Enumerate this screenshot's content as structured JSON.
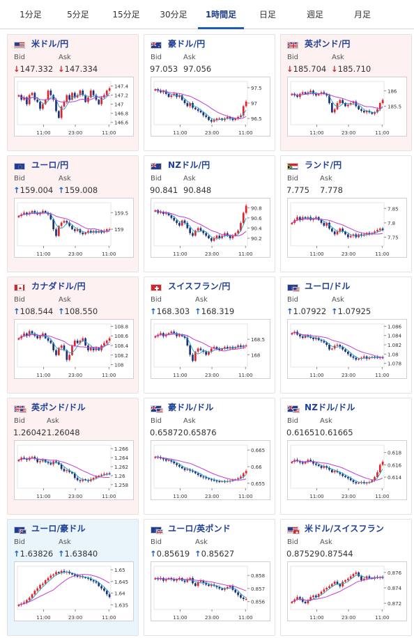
{
  "tabs": [
    {
      "label": "1分足",
      "active": false
    },
    {
      "label": "5分足",
      "active": false
    },
    {
      "label": "15分足",
      "active": false
    },
    {
      "label": "30分足",
      "active": false
    },
    {
      "label": "1時間足",
      "active": true
    },
    {
      "label": "日足",
      "active": false
    },
    {
      "label": "週足",
      "active": false
    },
    {
      "label": "月足",
      "active": false
    }
  ],
  "labels": {
    "bid": "Bid",
    "ask": "Ask"
  },
  "colors": {
    "up_arrow": "#1a5ec9",
    "down_arrow": "#d8232a",
    "candle_up": "#e0242a",
    "candle_down": "#1b2f7c",
    "ma_short": "#19a3c9",
    "ma_long": "#c03cd4",
    "card_pink": "#fdf1f1",
    "card_blue": "#eaf4fb"
  },
  "cards": [
    {
      "title": "米ドル/円",
      "flag": "us",
      "bg": "pink",
      "bid": "147.332",
      "ask": "147.334",
      "bid_arrow": "↓",
      "ask_arrow": "↓",
      "chart_data": {
        "type": "candlestick",
        "xticks": [
          "11:00",
          "23:00",
          "11:00"
        ],
        "yticks": [
          "147.4",
          "147.2",
          "147",
          "146.8",
          "146.6"
        ],
        "ylim": [
          146.55,
          147.5
        ],
        "close": [
          147.2,
          147.1,
          147.15,
          147.0,
          147.2,
          147.25,
          147.1,
          147.05,
          146.9,
          147.0,
          147.1,
          147.3,
          147.2,
          147.1,
          146.85,
          146.7,
          146.95,
          147.05,
          147.2,
          147.1,
          147.25,
          147.15,
          147.2,
          147.3,
          147.2,
          147.05,
          147.15,
          147.3,
          147.2,
          147.1,
          147.0,
          147.15,
          147.2,
          147.3,
          147.35
        ]
      }
    },
    {
      "title": "豪ドル/円",
      "flag": "au",
      "bg": "white",
      "bid": "97.053",
      "ask": "97.056",
      "bid_arrow": "",
      "ask_arrow": "",
      "chart_data": {
        "type": "candlestick",
        "xticks": [
          "11:00",
          "23:00",
          "11:00"
        ],
        "yticks": [
          "97.5",
          "97",
          "96.5"
        ],
        "ylim": [
          96.3,
          97.7
        ],
        "close": [
          97.45,
          97.4,
          97.35,
          97.4,
          97.3,
          97.2,
          97.25,
          97.3,
          97.2,
          97.25,
          97.1,
          97.0,
          96.9,
          97.0,
          96.85,
          96.8,
          96.75,
          96.7,
          96.6,
          96.55,
          96.45,
          96.4,
          96.45,
          96.5,
          96.5,
          96.45,
          96.5,
          96.55,
          96.5,
          96.45,
          96.5,
          96.55,
          96.6,
          96.9,
          97.05
        ]
      }
    },
    {
      "title": "英ポンド/円",
      "flag": "gb",
      "bg": "pink",
      "bid": "185.704",
      "ask": "185.710",
      "bid_arrow": "↓",
      "ask_arrow": "↓",
      "chart_data": {
        "type": "candlestick",
        "xticks": [
          "11:00",
          "23:00",
          "11:00"
        ],
        "yticks": [
          "186",
          "185.5"
        ],
        "ylim": [
          184.9,
          186.3
        ],
        "close": [
          185.9,
          185.85,
          185.8,
          185.9,
          185.95,
          185.9,
          185.95,
          186.0,
          185.9,
          185.85,
          185.9,
          185.95,
          185.9,
          185.85,
          185.6,
          185.3,
          185.4,
          185.6,
          185.7,
          185.6,
          185.5,
          185.55,
          185.6,
          185.65,
          185.5,
          185.4,
          185.35,
          185.3,
          185.35,
          185.3,
          185.25,
          185.3,
          185.4,
          185.6,
          185.7
        ]
      }
    },
    {
      "title": "ユーロ/円",
      "flag": "eu",
      "bg": "pink",
      "bid": "159.004",
      "ask": "159.008",
      "bid_arrow": "↑",
      "ask_arrow": "↑",
      "chart_data": {
        "type": "candlestick",
        "xticks": [
          "11:00",
          "23:00",
          "11:00"
        ],
        "yticks": [
          "159.5",
          "159"
        ],
        "ylim": [
          158.5,
          159.8
        ],
        "close": [
          159.4,
          159.45,
          159.5,
          159.45,
          159.5,
          159.55,
          159.5,
          159.45,
          159.5,
          159.55,
          159.5,
          159.45,
          159.3,
          159.0,
          158.8,
          159.1,
          159.2,
          159.25,
          159.2,
          159.1,
          159.0,
          158.95,
          159.0,
          158.9,
          158.85,
          158.9,
          158.95,
          158.9,
          158.95,
          158.9,
          158.95,
          158.9,
          158.95,
          159.0,
          159.0
        ]
      }
    },
    {
      "title": "NZドル/円",
      "flag": "nz",
      "bg": "white",
      "bid": "90.841",
      "ask": "90.848",
      "bid_arrow": "",
      "ask_arrow": "",
      "chart_data": {
        "type": "candlestick",
        "xticks": [
          "11:00",
          "23:00",
          "11:00"
        ],
        "yticks": [
          "90.8",
          "90.6",
          "90.4",
          "90.2"
        ],
        "ylim": [
          90.05,
          90.9
        ],
        "close": [
          90.75,
          90.7,
          90.72,
          90.68,
          90.7,
          90.65,
          90.6,
          90.55,
          90.5,
          90.45,
          90.55,
          90.5,
          90.4,
          90.3,
          90.25,
          90.35,
          90.4,
          90.35,
          90.3,
          90.25,
          90.2,
          90.15,
          90.2,
          90.25,
          90.2,
          90.25,
          90.3,
          90.25,
          90.2,
          90.25,
          90.3,
          90.35,
          90.5,
          90.7,
          90.84
        ]
      }
    },
    {
      "title": "ランド/円",
      "flag": "za",
      "bg": "white",
      "bid": "7.775",
      "ask": "7.778",
      "bid_arrow": "",
      "ask_arrow": "",
      "chart_data": {
        "type": "candlestick",
        "xticks": [
          "11:00",
          "23:00",
          "11:00"
        ],
        "yticks": [
          "7.85",
          "7.8",
          "7.75"
        ],
        "ylim": [
          7.72,
          7.87
        ],
        "close": [
          7.8,
          7.81,
          7.82,
          7.81,
          7.82,
          7.815,
          7.82,
          7.81,
          7.815,
          7.82,
          7.81,
          7.8,
          7.79,
          7.8,
          7.78,
          7.77,
          7.76,
          7.77,
          7.78,
          7.77,
          7.76,
          7.75,
          7.755,
          7.76,
          7.75,
          7.76,
          7.755,
          7.76,
          7.765,
          7.76,
          7.765,
          7.77,
          7.775,
          7.78,
          7.775
        ]
      }
    },
    {
      "title": "カナダドル/円",
      "flag": "ca",
      "bg": "pink",
      "bid": "108.544",
      "ask": "108.550",
      "bid_arrow": "↑",
      "ask_arrow": "↑",
      "chart_data": {
        "type": "candlestick",
        "xticks": [
          "11:00",
          "23:00",
          "11:00"
        ],
        "yticks": [
          "108.8",
          "108.6",
          "108.4",
          "108.2",
          "108"
        ],
        "ylim": [
          107.95,
          108.85
        ],
        "close": [
          108.55,
          108.6,
          108.65,
          108.6,
          108.7,
          108.65,
          108.6,
          108.55,
          108.6,
          108.65,
          108.55,
          108.5,
          108.45,
          108.3,
          108.2,
          108.35,
          108.4,
          108.3,
          108.1,
          108.2,
          108.4,
          108.5,
          108.45,
          108.5,
          108.55,
          108.4,
          108.3,
          108.35,
          108.3,
          108.35,
          108.3,
          108.4,
          108.45,
          108.5,
          108.55
        ]
      }
    },
    {
      "title": "スイスフラン/円",
      "flag": "ch",
      "bg": "white",
      "bid": "168.303",
      "ask": "168.319",
      "bid_arrow": "↑",
      "ask_arrow": "↑",
      "chart_data": {
        "type": "candlestick",
        "xticks": [
          "11:00",
          "23:00",
          "11:00"
        ],
        "yticks": [
          "168.5",
          "168"
        ],
        "ylim": [
          167.6,
          169.0
        ],
        "close": [
          168.6,
          168.65,
          168.7,
          168.6,
          168.65,
          168.7,
          168.75,
          168.7,
          168.6,
          168.65,
          168.6,
          168.55,
          168.3,
          168.0,
          167.8,
          168.1,
          168.2,
          168.15,
          168.1,
          168.0,
          168.1,
          168.2,
          168.25,
          168.2,
          168.15,
          168.2,
          168.25,
          168.2,
          168.25,
          168.2,
          168.25,
          168.3,
          168.25,
          168.3,
          168.3
        ]
      }
    },
    {
      "title": "ユーロ/ドル",
      "flag": "eu",
      "flag2": "us",
      "bg": "white",
      "bid": "1.07922",
      "ask": "1.07925",
      "bid_arrow": "↑",
      "ask_arrow": "↑",
      "chart_data": {
        "type": "candlestick",
        "xticks": [
          "11:00",
          "23:00",
          "11:00"
        ],
        "yticks": [
          "1.086",
          "1.084",
          "1.082",
          "1.08",
          "1.078"
        ],
        "ylim": [
          1.0772,
          1.0865
        ],
        "close": [
          1.0845,
          1.0848,
          1.0842,
          1.0838,
          1.0835,
          1.084,
          1.0838,
          1.0835,
          1.0832,
          1.0835,
          1.083,
          1.0828,
          1.0825,
          1.082,
          1.081,
          1.0812,
          1.0818,
          1.082,
          1.0815,
          1.081,
          1.0805,
          1.08,
          1.0795,
          1.0792,
          1.0788,
          1.079,
          1.0792,
          1.0795,
          1.079,
          1.0792,
          1.0794,
          1.0793,
          1.0792,
          1.0793,
          1.0792
        ]
      }
    },
    {
      "title": "英ポンド/ドル",
      "flag": "gb",
      "flag2": "us",
      "bg": "pink",
      "bid": "1.26042",
      "ask": "1.26048",
      "bid_arrow": "",
      "ask_arrow": "",
      "chart_data": {
        "type": "candlestick",
        "xticks": [
          "11:00",
          "23:00",
          "11:00"
        ],
        "yticks": [
          "1.266",
          "1.264",
          "1.262",
          "1.26",
          "1.258"
        ],
        "ylim": [
          1.2572,
          1.2668
        ],
        "close": [
          1.2635,
          1.264,
          1.2638,
          1.2635,
          1.264,
          1.2642,
          1.2638,
          1.263,
          1.2632,
          1.2635,
          1.263,
          1.2628,
          1.2625,
          1.2632,
          1.263,
          1.2625,
          1.2615,
          1.261,
          1.2612,
          1.2608,
          1.2605,
          1.2595,
          1.259,
          1.2588,
          1.2592,
          1.259,
          1.2588,
          1.2592,
          1.2595,
          1.2598,
          1.26,
          1.2602,
          1.2604,
          1.2605,
          1.2604
        ]
      }
    },
    {
      "title": "豪ドル/ドル",
      "flag": "au",
      "flag2": "us",
      "bg": "white",
      "bid": "0.65872",
      "ask": "0.65876",
      "bid_arrow": "",
      "ask_arrow": "",
      "chart_data": {
        "type": "candlestick",
        "xticks": [
          "11:00",
          "23:00",
          "11:00"
        ],
        "yticks": [
          "0.665",
          "0.66",
          "0.655"
        ],
        "ylim": [
          0.6535,
          0.6665
        ],
        "close": [
          0.663,
          0.6628,
          0.6625,
          0.6622,
          0.6618,
          0.662,
          0.6615,
          0.661,
          0.6605,
          0.66,
          0.6595,
          0.659,
          0.6592,
          0.6588,
          0.6585,
          0.658,
          0.6575,
          0.657,
          0.6568,
          0.6565,
          0.6562,
          0.656,
          0.6558,
          0.6556,
          0.6555,
          0.6556,
          0.6555,
          0.6556,
          0.6558,
          0.656,
          0.6562,
          0.6565,
          0.657,
          0.658,
          0.6587
        ]
      }
    },
    {
      "title": "NZドル/ドル",
      "flag": "nz",
      "flag2": "us",
      "bg": "white",
      "bid": "0.61651",
      "ask": "0.61665",
      "bid_arrow": "",
      "ask_arrow": "",
      "chart_data": {
        "type": "candlestick",
        "xticks": [
          "11:00",
          "23:00",
          "11:00"
        ],
        "yticks": [
          "0.618",
          "0.616",
          "0.614"
        ],
        "ylim": [
          0.6122,
          0.6192
        ],
        "close": [
          0.6165,
          0.6168,
          0.6166,
          0.6164,
          0.6162,
          0.6165,
          0.6168,
          0.6166,
          0.6162,
          0.616,
          0.6158,
          0.6155,
          0.6158,
          0.6155,
          0.6152,
          0.6148,
          0.615,
          0.6148,
          0.6145,
          0.6142,
          0.614,
          0.6138,
          0.6135,
          0.6132,
          0.613,
          0.6131,
          0.6132,
          0.613,
          0.6131,
          0.6132,
          0.6135,
          0.614,
          0.6148,
          0.616,
          0.6165
        ]
      }
    },
    {
      "title": "ユーロ/豪ドル",
      "flag": "eu",
      "flag2": "au",
      "bg": "blue",
      "bid": "1.63826",
      "ask": "1.63840",
      "bid_arrow": "↑",
      "ask_arrow": "↑",
      "chart_data": {
        "type": "candlestick",
        "xticks": [
          "11:00",
          "23:00",
          "11:00"
        ],
        "yticks": [
          "1.65",
          "1.645",
          "1.64",
          "1.635"
        ],
        "ylim": [
          1.633,
          1.6515
        ],
        "close": [
          1.635,
          1.6355,
          1.636,
          1.637,
          1.638,
          1.6395,
          1.641,
          1.642,
          1.6435,
          1.644,
          1.6455,
          1.6465,
          1.6475,
          1.648,
          1.649,
          1.6485,
          1.6495,
          1.6488,
          1.6492,
          1.6485,
          1.648,
          1.6475,
          1.647,
          1.6472,
          1.6468,
          1.6465,
          1.6462,
          1.6455,
          1.645,
          1.6445,
          1.643,
          1.642,
          1.641,
          1.6395,
          1.6383
        ]
      }
    },
    {
      "title": "ユーロ/英ポンド",
      "flag": "eu",
      "flag2": "gb",
      "bg": "white",
      "bid": "0.85619",
      "ask": "0.85627",
      "bid_arrow": "↑",
      "ask_arrow": "↑",
      "chart_data": {
        "type": "candlestick",
        "xticks": [
          "11:00",
          "23:00",
          "11:00"
        ],
        "yticks": [
          "0.858",
          "0.857",
          "0.856"
        ],
        "ylim": [
          0.8554,
          0.8587
        ],
        "close": [
          0.8578,
          0.8577,
          0.8578,
          0.8576,
          0.8577,
          0.8578,
          0.8577,
          0.8576,
          0.8577,
          0.8578,
          0.8576,
          0.8575,
          0.8577,
          0.8578,
          0.8574,
          0.8572,
          0.8575,
          0.8576,
          0.8574,
          0.8573,
          0.8572,
          0.8573,
          0.8572,
          0.8571,
          0.857,
          0.8569,
          0.857,
          0.8571,
          0.8572,
          0.8569,
          0.8567,
          0.8565,
          0.8563,
          0.8562,
          0.8562
        ]
      }
    },
    {
      "title": "米ドル/スイスフラン",
      "flag": "us",
      "flag2": "ch",
      "bg": "white",
      "bid": "0.87529",
      "ask": "0.87544",
      "bid_arrow": "",
      "ask_arrow": "",
      "chart_data": {
        "type": "candlestick",
        "xticks": [
          "11:00",
          "23:00",
          "11:00"
        ],
        "yticks": [
          "0.876",
          "0.874",
          "0.872"
        ],
        "ylim": [
          0.8712,
          0.8768
        ],
        "close": [
          0.8722,
          0.8725,
          0.8728,
          0.8726,
          0.8722,
          0.872,
          0.8724,
          0.8728,
          0.873,
          0.8728,
          0.8732,
          0.8735,
          0.8738,
          0.874,
          0.8742,
          0.8745,
          0.8748,
          0.8745,
          0.8742,
          0.8748,
          0.875,
          0.8752,
          0.8755,
          0.8758,
          0.876,
          0.8755,
          0.875,
          0.8752,
          0.8755,
          0.8753,
          0.8752,
          0.8754,
          0.8753,
          0.8754,
          0.8753
        ]
      }
    }
  ]
}
